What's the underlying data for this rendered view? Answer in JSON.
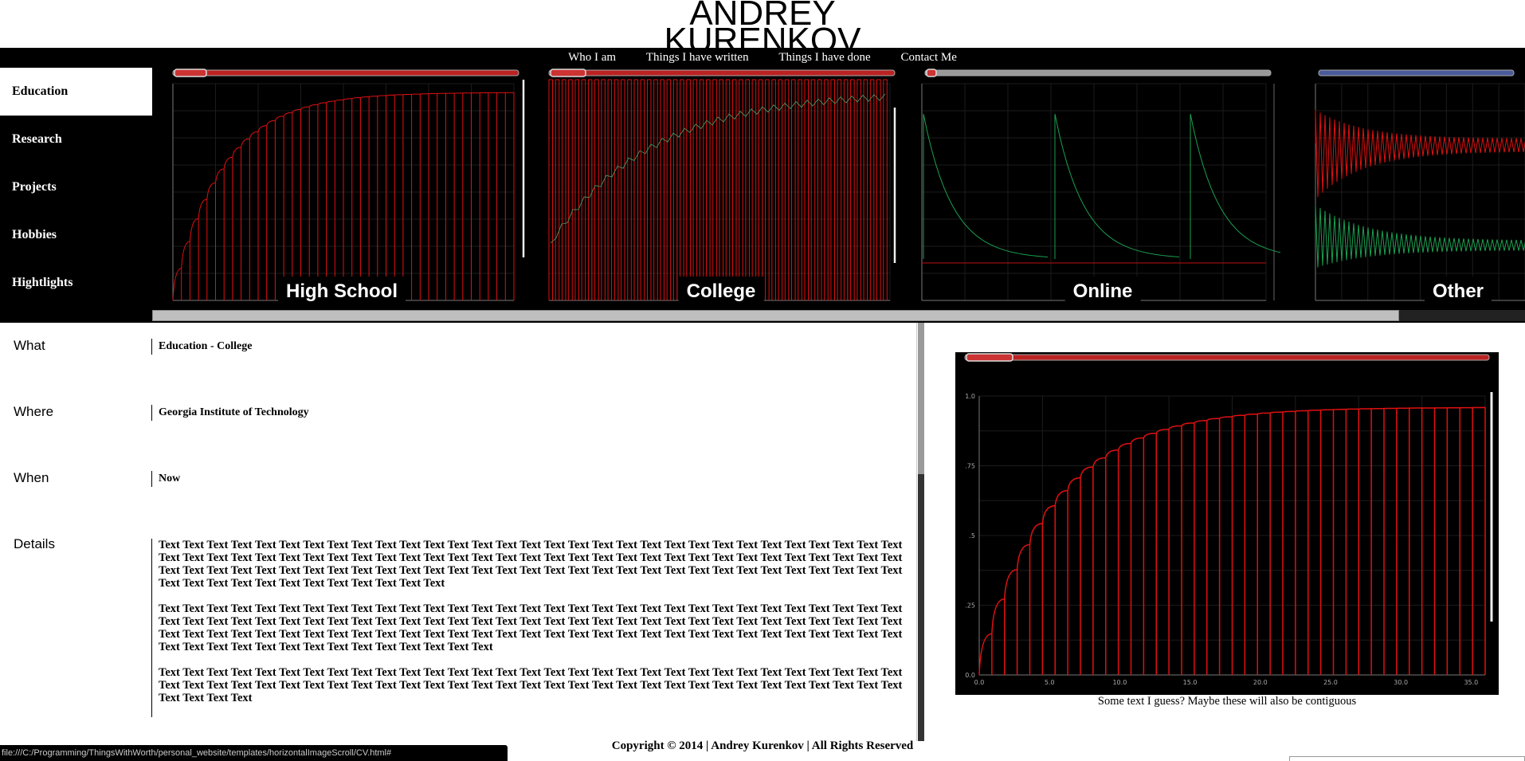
{
  "header": {
    "name_line1": "ANDREY",
    "name_line2": "KURENKOV"
  },
  "top_nav": [
    {
      "label": "Who I am"
    },
    {
      "label": "Things I have written"
    },
    {
      "label": "Things I have done"
    },
    {
      "label": "Contact Me"
    }
  ],
  "sidebar": {
    "items": [
      {
        "label": "Education",
        "active": true
      },
      {
        "label": "Research"
      },
      {
        "label": "Projects"
      },
      {
        "label": "Hobbies"
      },
      {
        "label": "Hightlights"
      }
    ]
  },
  "gallery": {
    "panels": [
      {
        "label": "High School",
        "image": "red-charging-curve-plot"
      },
      {
        "label": "College",
        "image": "red-pulse-train-plot"
      },
      {
        "label": "Online",
        "image": "green-spike-decay-plot"
      },
      {
        "label": "Other",
        "image": "red-green-ringing-plot"
      }
    ]
  },
  "details": {
    "what_label": "What",
    "what_value": "Education - College",
    "where_label": "Where",
    "where_value": "Georgia Institute of Technology",
    "when_label": "When",
    "when_value": "Now",
    "details_label": "Details",
    "paragraph1": "Text Text Text Text Text Text Text Text Text Text Text Text Text Text Text Text Text Text Text Text Text Text Text Text Text Text Text Text Text Text Text Text Text Text Text Text Text Text Text Text Text Text Text Text Text Text Text Text Text Text Text Text Text Text Text Text Text Text Text Text Text Text Text Text Text Text Text Text Text Text Text Text Text Text Text Text Text Text Text Text Text Text Text Text Text Text Text Text Text Text Text Text Text Text Text Text Text Text Text Text Text Text Text Text Text",
    "paragraph2": "Text Text Text Text Text Text Text Text Text Text Text Text Text Text Text Text Text Text Text Text Text Text Text Text Text Text Text Text Text Text Text Text Text Text Text Text Text Text Text Text Text Text Text Text Text Text Text Text Text Text Text Text Text Text Text Text Text Text Text Text Text Text Text Text Text Text Text Text Text Text Text Text Text Text Text Text Text Text Text Text Text Text Text Text Text Text Text Text Text Text Text Text Text Text Text Text Text Text Text Text Text Text Text Text Text Text Text",
    "paragraph3": "Text Text Text Text Text Text Text Text Text Text Text Text Text Text Text Text Text Text Text Text Text Text Text Text Text Text Text Text Text Text Text Text Text Text Text Text Text Text Text Text Text Text Text Text Text Text Text Text Text Text Text Text Text Text Text Text Text Text Text Text Text Text Text Text Text Text"
  },
  "figure": {
    "caption": "Some text I guess? Maybe these will also be contiguous",
    "image": "red-charging-curve-plot",
    "y_ticks": [
      "1.0",
      ".75",
      ".5",
      ".25",
      "0.0"
    ],
    "x_ticks": [
      "0.0",
      "5.0",
      "10.0",
      "15.0",
      "20.0",
      "25.0",
      "30.0",
      "35.0"
    ]
  },
  "footer": {
    "text": "Copyright © 2014 | Andrey Kurenkov | All Rights Reserved"
  },
  "status_bar": {
    "url": "file:///C:/Programming/ThingsWithWorth/personal_website/templates/horizontalImageScroll/CV.html#"
  },
  "colors": {
    "accent_red": "#e01010",
    "trace_green": "#1aa050",
    "background": "#000000"
  }
}
